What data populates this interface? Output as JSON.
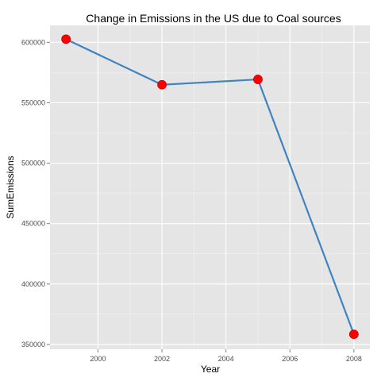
{
  "chart_data": {
    "type": "line",
    "title": "Change in Emissions in the US due to Coal sources",
    "xlabel": "Year",
    "ylabel": "SumEmissions",
    "x": [
      1999,
      2002,
      2005,
      2008
    ],
    "series": [
      {
        "values": [
          602600,
          564900,
          569300,
          358400
        ]
      }
    ],
    "xlim": [
      1998.5,
      2008.5
    ],
    "ylim": [
      346000,
      614000
    ],
    "x_ticks": [
      2000,
      2002,
      2004,
      2006,
      2008
    ],
    "y_ticks": [
      350000,
      400000,
      450000,
      500000,
      550000,
      600000
    ],
    "x_tick_labels": [
      "2000",
      "2002",
      "2004",
      "2006",
      "2008"
    ],
    "y_tick_labels": [
      "350000",
      "400000",
      "450000",
      "500000",
      "550000",
      "600000"
    ],
    "grid": true,
    "colors": {
      "panel": "#e5e5e5",
      "grid_major": "#ffffff",
      "grid_minor": "#f2f2f2",
      "line": "#3f83c2",
      "point": "#ff0000",
      "point_outline": "#c80000"
    }
  }
}
